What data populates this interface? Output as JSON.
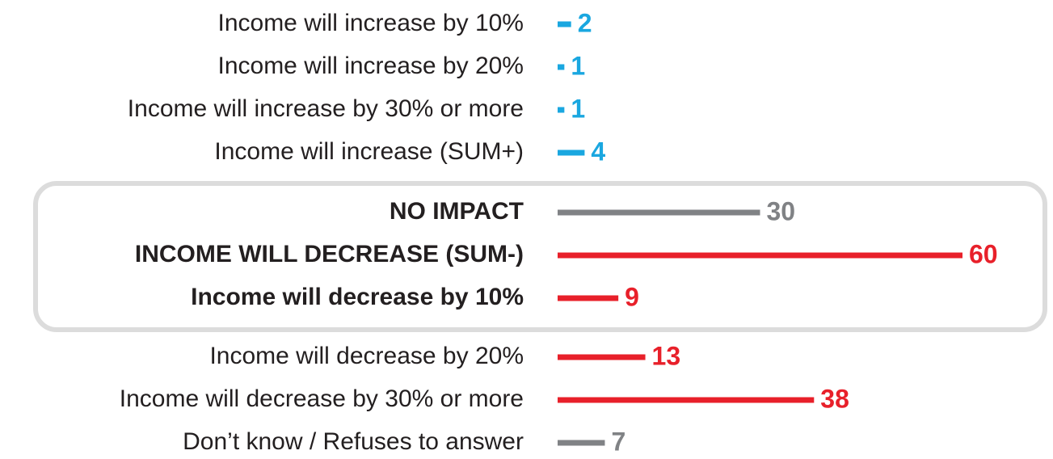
{
  "chart_data": {
    "type": "bar",
    "orientation": "horizontal",
    "categories": [
      "Income will increase by 10%",
      "Income will increase by 20%",
      "Income will increase by 30% or more",
      "Income will increase (SUM+)",
      "NO IMPACT",
      "INCOME WILL DECREASE (SUM-)",
      "Income will decrease by 10%",
      "Income will decrease by 20%",
      "Income will decrease by 30% or more",
      "Don’t know / Refuses to answer"
    ],
    "values": [
      2,
      1,
      1,
      4,
      30,
      60,
      9,
      13,
      38,
      7
    ],
    "colors": [
      "#1aa7e0",
      "#1aa7e0",
      "#1aa7e0",
      "#1aa7e0",
      "#808285",
      "#e8202a",
      "#e8202a",
      "#e8202a",
      "#e8202a",
      "#808285"
    ]
  }
}
